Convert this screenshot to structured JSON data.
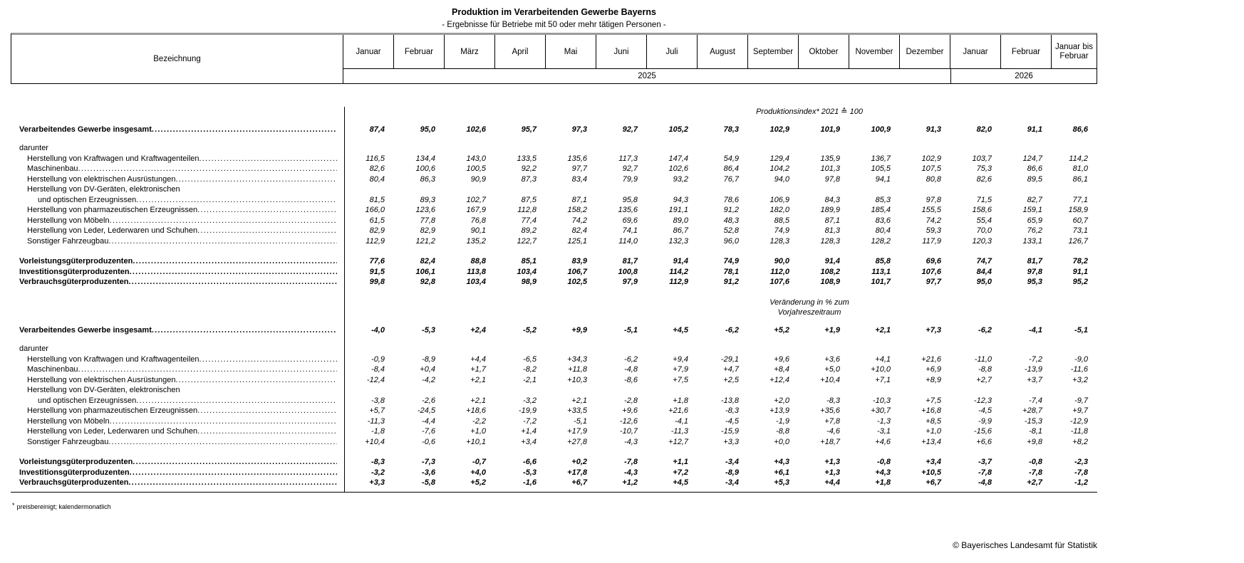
{
  "title": "Produktion im Verarbeitenden Gewerbe Bayerns",
  "subtitle": "- Ergebnisse für Betriebe mit 50 oder mehr tätigen Personen -",
  "table": {
    "label_header": "Bezeichnung",
    "months_2025": [
      "Januar",
      "Februar",
      "März",
      "April",
      "Mai",
      "Juni",
      "Juli",
      "August",
      "September",
      "Oktober",
      "November",
      "Dezember"
    ],
    "months_2026": [
      "Januar",
      "Februar"
    ],
    "cumulative_header": "Januar bis Februar",
    "year_2025": "2025",
    "year_2026": "2026",
    "rows": [
      {
        "label": "Verarbeitendes Gewerbe insgesamt",
        "kind": "total"
      },
      {
        "label": "darunter",
        "kind": "subhead"
      },
      {
        "label": "Herstellung von Kraftwagen und Kraftwagenteilen",
        "kind": "item"
      },
      {
        "label": "Maschinenbau",
        "kind": "item"
      },
      {
        "label": "Herstellung von elektrischen Ausrüstungen",
        "kind": "item"
      },
      {
        "label": "Herstellung von DV-Geräten, elektronischen",
        "label2": "und optischen Erzeugnissen",
        "kind": "item"
      },
      {
        "label": "Herstellung von pharmazeutischen Erzeugnissen",
        "kind": "item"
      },
      {
        "label": "Herstellung von Möbeln",
        "kind": "item"
      },
      {
        "label": "Herstellung von Leder, Lederwaren und Schuhen",
        "kind": "item"
      },
      {
        "label": "Sonstiger Fahrzeugbau",
        "kind": "item"
      },
      {
        "label": "Vorleistungsgüterproduzenten",
        "kind": "group"
      },
      {
        "label": "Investitionsgüterproduzenten",
        "kind": "group"
      },
      {
        "label": "Verbrauchsgüterproduzenten",
        "kind": "group"
      }
    ],
    "sections": [
      {
        "heading_lines": [
          "Produktionsindex* 2021 ≙ 100"
        ],
        "values": [
          [
            "87,4",
            "95,0",
            "102,6",
            "95,7",
            "97,3",
            "92,7",
            "105,2",
            "78,3",
            "102,9",
            "101,9",
            "100,9",
            "91,3",
            "82,0",
            "91,1",
            "86,6"
          ],
          null,
          [
            "116,5",
            "134,4",
            "143,0",
            "133,5",
            "135,6",
            "117,3",
            "147,4",
            "54,9",
            "129,4",
            "135,9",
            "136,7",
            "102,9",
            "103,7",
            "124,7",
            "114,2"
          ],
          [
            "82,6",
            "100,6",
            "100,5",
            "92,2",
            "97,7",
            "92,7",
            "102,6",
            "86,4",
            "104,2",
            "101,3",
            "105,5",
            "107,5",
            "75,3",
            "86,6",
            "81,0"
          ],
          [
            "80,4",
            "86,3",
            "90,9",
            "87,3",
            "83,4",
            "79,9",
            "93,2",
            "76,7",
            "94,0",
            "97,8",
            "94,1",
            "80,8",
            "82,6",
            "89,5",
            "86,1"
          ],
          [
            "81,5",
            "89,3",
            "102,7",
            "87,5",
            "87,1",
            "95,8",
            "94,3",
            "78,6",
            "106,9",
            "84,3",
            "85,3",
            "97,8",
            "71,5",
            "82,7",
            "77,1"
          ],
          [
            "166,0",
            "123,6",
            "167,9",
            "112,8",
            "158,2",
            "135,6",
            "191,1",
            "91,2",
            "182,0",
            "189,9",
            "185,4",
            "155,5",
            "158,6",
            "159,1",
            "158,9"
          ],
          [
            "61,5",
            "77,8",
            "76,8",
            "77,4",
            "74,2",
            "69,6",
            "89,0",
            "48,3",
            "88,5",
            "87,1",
            "83,6",
            "74,2",
            "55,4",
            "65,9",
            "60,7"
          ],
          [
            "82,9",
            "82,9",
            "90,1",
            "89,2",
            "82,4",
            "74,1",
            "86,7",
            "52,8",
            "74,9",
            "81,3",
            "80,4",
            "59,3",
            "70,0",
            "76,2",
            "73,1"
          ],
          [
            "112,9",
            "121,2",
            "135,2",
            "122,7",
            "125,1",
            "114,0",
            "132,3",
            "96,0",
            "128,3",
            "128,3",
            "128,2",
            "117,9",
            "120,3",
            "133,1",
            "126,7"
          ],
          [
            "77,6",
            "82,4",
            "88,8",
            "85,1",
            "83,9",
            "81,7",
            "91,4",
            "74,9",
            "90,0",
            "91,4",
            "85,8",
            "69,6",
            "74,7",
            "81,7",
            "78,2"
          ],
          [
            "91,5",
            "106,1",
            "113,8",
            "103,4",
            "106,7",
            "100,8",
            "114,2",
            "78,1",
            "112,0",
            "108,2",
            "113,1",
            "107,6",
            "84,4",
            "97,8",
            "91,1"
          ],
          [
            "99,8",
            "92,8",
            "103,4",
            "98,9",
            "102,5",
            "97,9",
            "112,9",
            "91,2",
            "107,6",
            "108,9",
            "101,7",
            "97,7",
            "95,0",
            "95,3",
            "95,2"
          ]
        ]
      },
      {
        "heading_lines": [
          "Veränderung in % zum",
          "Vorjahreszeitraum"
        ],
        "values": [
          [
            "-4,0",
            "-5,3",
            "+2,4",
            "-5,2",
            "+9,9",
            "-5,1",
            "+4,5",
            "-6,2",
            "+5,2",
            "+1,9",
            "+2,1",
            "+7,3",
            "-6,2",
            "-4,1",
            "-5,1"
          ],
          null,
          [
            "-0,9",
            "-8,9",
            "+4,4",
            "-6,5",
            "+34,3",
            "-6,2",
            "+9,4",
            "-29,1",
            "+9,6",
            "+3,6",
            "+4,1",
            "+21,6",
            "-11,0",
            "-7,2",
            "-9,0"
          ],
          [
            "-8,4",
            "+0,4",
            "+1,7",
            "-8,2",
            "+11,8",
            "-4,8",
            "+7,9",
            "+4,7",
            "+8,4",
            "+5,0",
            "+10,0",
            "+6,9",
            "-8,8",
            "-13,9",
            "-11,6"
          ],
          [
            "-12,4",
            "-4,2",
            "+2,1",
            "-2,1",
            "+10,3",
            "-8,6",
            "+7,5",
            "+2,5",
            "+12,4",
            "+10,4",
            "+7,1",
            "+8,9",
            "+2,7",
            "+3,7",
            "+3,2"
          ],
          [
            "-3,8",
            "-2,6",
            "+2,1",
            "-3,2",
            "+2,1",
            "-2,8",
            "+1,8",
            "-13,8",
            "+2,0",
            "-8,3",
            "-10,3",
            "+7,5",
            "-12,3",
            "-7,4",
            "-9,7"
          ],
          [
            "+5,7",
            "-24,5",
            "+18,6",
            "-19,9",
            "+33,5",
            "+9,6",
            "+21,6",
            "-8,3",
            "+13,9",
            "+35,6",
            "+30,7",
            "+16,8",
            "-4,5",
            "+28,7",
            "+9,7"
          ],
          [
            "-11,3",
            "-4,4",
            "-2,2",
            "-7,2",
            "-5,1",
            "-12,6",
            "-4,1",
            "-4,5",
            "-1,9",
            "+7,8",
            "-1,3",
            "+8,5",
            "-9,9",
            "-15,3",
            "-12,9"
          ],
          [
            "-1,8",
            "-7,6",
            "+1,0",
            "+1,4",
            "+17,9",
            "-10,7",
            "-11,3",
            "-15,9",
            "-8,8",
            "-4,6",
            "-3,1",
            "+1,0",
            "-15,6",
            "-8,1",
            "-11,8"
          ],
          [
            "+10,4",
            "-0,6",
            "+10,1",
            "+3,4",
            "+27,8",
            "-4,3",
            "+12,7",
            "+3,3",
            "+0,0",
            "+18,7",
            "+4,6",
            "+13,4",
            "+6,6",
            "+9,8",
            "+8,2"
          ],
          [
            "-8,3",
            "-7,3",
            "-0,7",
            "-6,6",
            "+0,2",
            "-7,8",
            "+1,1",
            "-3,4",
            "+4,3",
            "+1,3",
            "-0,8",
            "+3,4",
            "-3,7",
            "-0,8",
            "-2,3"
          ],
          [
            "-3,2",
            "-3,6",
            "+4,0",
            "-5,3",
            "+17,8",
            "-4,3",
            "+7,2",
            "-8,9",
            "+6,1",
            "+1,3",
            "+4,3",
            "+10,5",
            "-7,8",
            "-7,8",
            "-7,8"
          ],
          [
            "+3,3",
            "-5,8",
            "+5,2",
            "-1,6",
            "+6,7",
            "+1,2",
            "+4,5",
            "-3,4",
            "+5,3",
            "+4,4",
            "+1,8",
            "+6,7",
            "-4,8",
            "+2,7",
            "-1,2"
          ]
        ]
      }
    ]
  },
  "footnote": {
    "marker": "*",
    "text": "preisbereinigt; kalendermonatlich"
  },
  "copyright": "© Bayerisches Landesamt für Statistik"
}
